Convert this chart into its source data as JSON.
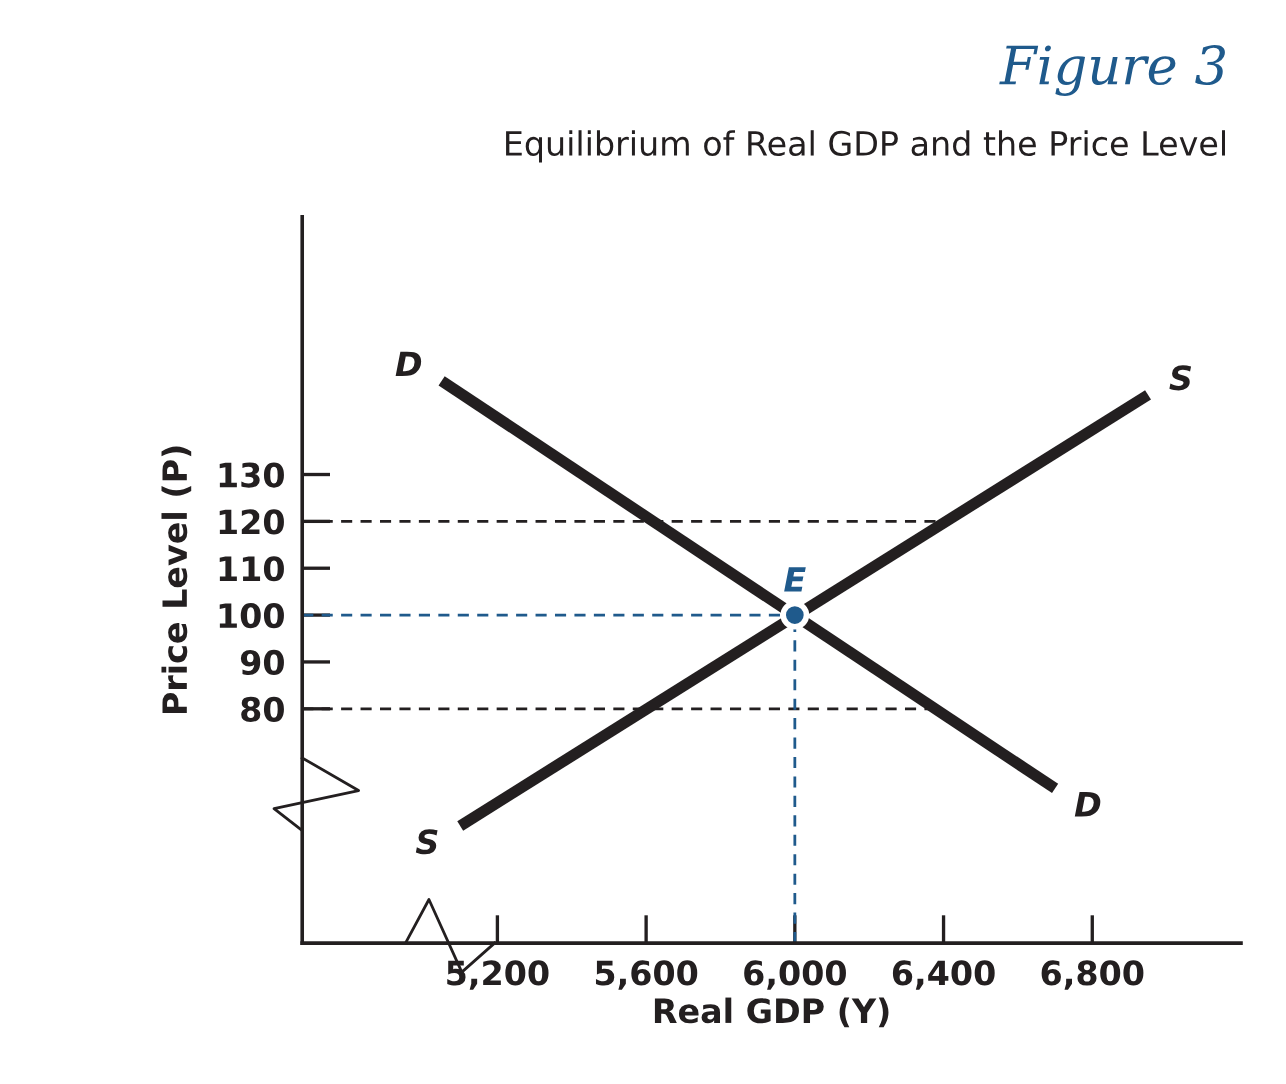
{
  "chart_data": {
    "type": "line",
    "title": "Figure 3",
    "subtitle": "Equilibrium of Real GDP and the Price Level",
    "xlabel": "Real GDP (Y)",
    "ylabel": "Price Level (P)",
    "xlim": [
      4675,
      7200
    ],
    "ylim": [
      30,
      185
    ],
    "xticks": [
      {
        "value": 5200,
        "label": "5,200"
      },
      {
        "value": 5600,
        "label": "5,600"
      },
      {
        "value": 6000,
        "label": "6,000"
      },
      {
        "value": 6400,
        "label": "6,400"
      },
      {
        "value": 6800,
        "label": "6,800"
      }
    ],
    "yticks": [
      80,
      90,
      100,
      110,
      120,
      130
    ],
    "series": [
      {
        "name": "D",
        "color": "#231f20",
        "x": [
          5050,
          6700
        ],
        "values": [
          150,
          63
        ]
      },
      {
        "name": "S",
        "color": "#231f20",
        "x": [
          5100,
          6950
        ],
        "values": [
          55,
          147
        ]
      },
      {
        "name": "E",
        "type": "scatter",
        "color": "#1f5a8c",
        "x": [
          6000
        ],
        "values": [
          100
        ]
      }
    ],
    "ref_lines": [
      {
        "axis": "y",
        "value": 120,
        "color": "#231f20",
        "line_style": "dashed"
      },
      {
        "axis": "y",
        "value": 100,
        "color": "#1f5a8c",
        "line_style": "dashed"
      },
      {
        "axis": "y",
        "value": 80,
        "color": "#231f20",
        "line_style": "dashed"
      },
      {
        "axis": "x",
        "value": 6000,
        "color": "#1f5a8c",
        "line_style": "dashed"
      }
    ],
    "grid": false,
    "legend": false
  }
}
